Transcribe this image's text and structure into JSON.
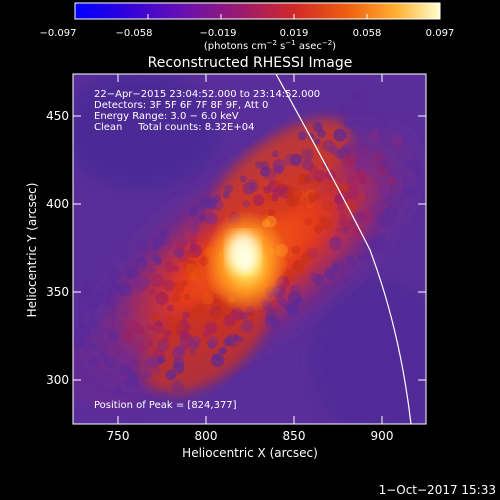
{
  "colorbar": {
    "tick_labels": [
      "−0.097",
      "−0.058",
      "−0.019",
      "0.019",
      "0.058",
      "0.097"
    ],
    "unit_html": "(photons cm<tspan dy=\"-4\" font-size=\"7\">−2</tspan><tspan dy=\"4\"> s</tspan><tspan dy=\"-4\" font-size=\"7\">−1</tspan><tspan dy=\"4\"> asec</tspan><tspan dy=\"-4\" font-size=\"7\">−2</tspan><tspan dy=\"4\">)</tspan>",
    "colormap": [
      "#0000ff",
      "#3a00d8",
      "#6a10b8",
      "#8a1a8a",
      "#b2205a",
      "#d83020",
      "#f06010",
      "#ffa020",
      "#ffe050",
      "#ffffe0"
    ]
  },
  "plot": {
    "title": "Reconstructed RHESSI Image",
    "xlabel": "Heliocentric X (arcsec)",
    "ylabel": "Heliocentric Y (arcsec)",
    "x_ticks": [
      "750",
      "800",
      "850",
      "900"
    ],
    "y_ticks": [
      "450",
      "400",
      "350",
      "300"
    ],
    "info_lines": [
      "22−Apr−2015 23:04:52.000 to 23:14:52.000",
      "Detectors: 3F 5F 6F 7F 8F 9F, Att 0",
      "Energy Range: 3.0 − 6.0 keV",
      "Clean     Total counts: 8.32E+04"
    ],
    "peak_label": "Position of Peak = [824,377]",
    "source_colors": [
      "#5a2a9a",
      "#7a2a8a",
      "#a02060",
      "#c83018",
      "#e85010",
      "#ff9020",
      "#ffe060",
      "#ffffc0"
    ]
  },
  "footer": {
    "timestamp": "1−Oct−2017 15:33"
  }
}
